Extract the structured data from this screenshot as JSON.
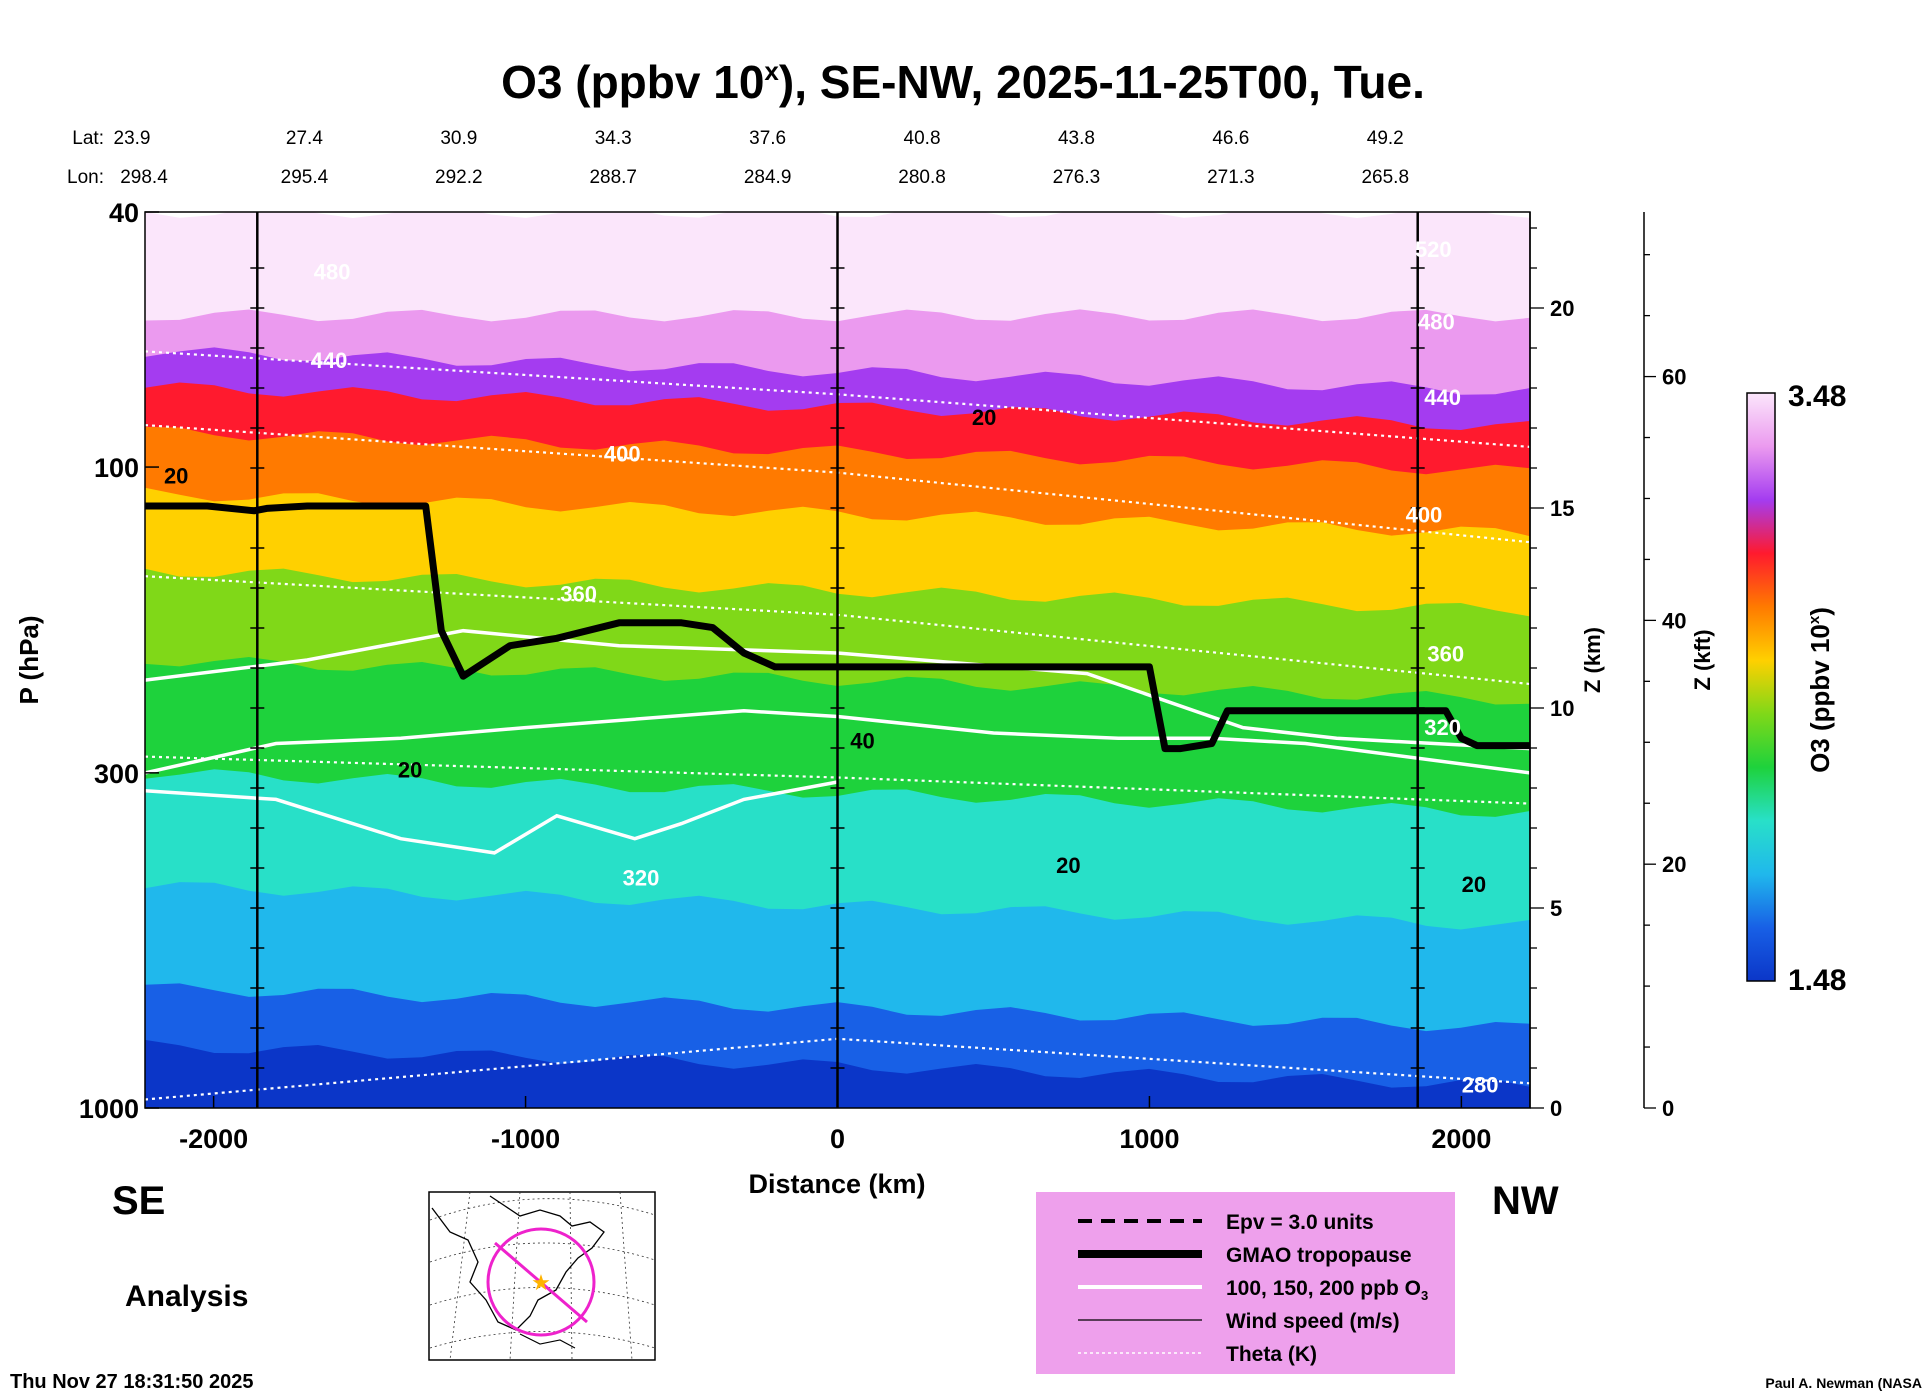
{
  "chart_data": {
    "type": "heatmap",
    "title": "O3 (ppbv 10",
    "title_sup": "x",
    "title_tail": "), SE-NW, 2025-11-25T00, Tue.",
    "xlabel": "Distance (km)",
    "ylabel": "P (hPa)",
    "y2label": "Z (km)",
    "y3label": "Z (kft)",
    "colorbar_label": "O3 (ppbv 10",
    "colorbar_label_sup": "x",
    "colorbar_label_tail": ")",
    "xlim": [
      -2220,
      2220
    ],
    "ylim_hpa": [
      1000,
      40
    ],
    "x_ticks": [
      -2000,
      -1000,
      0,
      1000,
      2000
    ],
    "y_ticks": [
      {
        "p": 40,
        "label": "40"
      },
      {
        "p": 100,
        "label": "100"
      },
      {
        "p": 300,
        "label": "300"
      },
      {
        "p": 1000,
        "label": "1000"
      }
    ],
    "z_km_ticks": [
      {
        "z": 0,
        "label": "0"
      },
      {
        "z": 5,
        "label": "5"
      },
      {
        "z": 10,
        "label": "10"
      },
      {
        "z": 15,
        "label": "15"
      },
      {
        "z": 20,
        "label": "20"
      }
    ],
    "z_kft_ticks": [
      {
        "z": 0,
        "label": "0"
      },
      {
        "z": 20,
        "label": "20"
      },
      {
        "z": 40,
        "label": "40"
      },
      {
        "z": 60,
        "label": "60"
      }
    ],
    "lat_label": "Lat:",
    "lon_label": "Lon:",
    "positions": [
      {
        "x": -2220,
        "lat": "23.9",
        "lon": "298.4"
      },
      {
        "x": -1725,
        "lat": "27.4",
        "lon": "295.4"
      },
      {
        "x": -1230,
        "lat": "30.9",
        "lon": "292.2"
      },
      {
        "x": -735,
        "lat": "34.3",
        "lon": "288.7"
      },
      {
        "x": -240,
        "lat": "37.6",
        "lon": "284.9"
      },
      {
        "x": 255,
        "lat": "40.8",
        "lon": "280.8"
      },
      {
        "x": 750,
        "lat": "43.8",
        "lon": "276.3"
      },
      {
        "x": 1245,
        "lat": "46.6",
        "lon": "271.3"
      },
      {
        "x": 1740,
        "lat": "49.2",
        "lon": "265.8"
      }
    ],
    "station_lines_x": [
      -1860,
      0,
      1860
    ],
    "colorbar": {
      "min": "1.48",
      "max": "3.48"
    },
    "ozone_bands_hpa": [
      {
        "p_top": 40,
        "p_bot": 58,
        "value": 3.48,
        "color": "#fbe6fb"
      },
      {
        "p_top": 58,
        "p_bot": 66,
        "value": 3.3,
        "color": "#eb9aef"
      },
      {
        "p_top": 66,
        "p_bot": 75,
        "value": 3.15,
        "color": "#a43cf0"
      },
      {
        "p_top": 75,
        "p_bot": 88,
        "value": 3.0,
        "color": "#ff1a2e"
      },
      {
        "p_top": 88,
        "p_bot": 110,
        "value": 2.85,
        "color": "#ff7a00"
      },
      {
        "p_top": 110,
        "p_bot": 145,
        "value": 2.7,
        "color": "#ffd000"
      },
      {
        "p_top": 145,
        "p_bot": 200,
        "value": 2.55,
        "color": "#80d818"
      },
      {
        "p_top": 200,
        "p_bot": 300,
        "value": 2.4,
        "color": "#1ed23c"
      },
      {
        "p_top": 300,
        "p_bot": 450,
        "value": 2.25,
        "color": "#28e0c8"
      },
      {
        "p_top": 450,
        "p_bot": 650,
        "value": 2.1,
        "color": "#20b8ec"
      },
      {
        "p_top": 650,
        "p_bot": 800,
        "value": 1.95,
        "color": "#1860e6"
      },
      {
        "p_top": 800,
        "p_bot": 1000,
        "value": 1.8,
        "color": "#0b36c8"
      }
    ],
    "tropopause": {
      "name": "GMAO tropopause",
      "x": [
        -2220,
        -2020,
        -1870,
        -1830,
        -1700,
        -1320,
        -1270,
        -1200,
        -1050,
        -900,
        -700,
        -500,
        -400,
        -300,
        -200,
        0,
        500,
        1000,
        1050,
        1100,
        1200,
        1250,
        1300,
        1600,
        1950,
        2000,
        2050,
        2220
      ],
      "p_hpa": [
        115,
        115,
        117,
        116,
        115,
        115,
        180,
        212,
        190,
        185,
        175,
        175,
        178,
        195,
        205,
        205,
        205,
        205,
        275,
        275,
        270,
        240,
        240,
        240,
        240,
        265,
        272,
        272
      ]
    },
    "theta_lines_K": [
      {
        "label": "440",
        "x": [
          -2220,
          0,
          2220
        ],
        "p_hpa": [
          66,
          77,
          93
        ]
      },
      {
        "label": "400",
        "x": [
          -2220,
          0,
          2220
        ],
        "p_hpa": [
          86,
          102,
          131
        ]
      },
      {
        "label": "360",
        "x": [
          -2220,
          0,
          2220
        ],
        "p_hpa": [
          148,
          170,
          218
        ]
      },
      {
        "label": "320",
        "x": [
          -2220,
          0,
          2220
        ],
        "p_hpa": [
          283,
          305,
          335
        ]
      },
      {
        "label": "280",
        "x": [
          -2220,
          0,
          2220
        ],
        "p_hpa": [
          970,
          780,
          915
        ]
      }
    ],
    "contour_labels": {
      "theta": [
        {
          "label": "480",
          "x": -1620,
          "p": 51
        },
        {
          "label": "440",
          "x": -1630,
          "p": 70
        },
        {
          "label": "400",
          "x": -690,
          "p": 98
        },
        {
          "label": "360",
          "x": -830,
          "p": 162
        },
        {
          "label": "320",
          "x": -630,
          "p": 450
        },
        {
          "label": "520",
          "x": 1910,
          "p": 47
        },
        {
          "label": "480",
          "x": 1920,
          "p": 61
        },
        {
          "label": "440",
          "x": 1940,
          "p": 80
        },
        {
          "label": "400",
          "x": 1880,
          "p": 122
        },
        {
          "label": "360",
          "x": 1950,
          "p": 201
        },
        {
          "label": "320",
          "x": 1940,
          "p": 262
        },
        {
          "label": "280",
          "x": 2060,
          "p": 945
        }
      ],
      "wind": [
        {
          "label": "20",
          "x": 470,
          "p": 86
        },
        {
          "label": "20",
          "x": -2120,
          "p": 106
        },
        {
          "label": "20",
          "x": -1370,
          "p": 305
        },
        {
          "label": "40",
          "x": 80,
          "p": 275
        },
        {
          "label": "20",
          "x": 740,
          "p": 430
        },
        {
          "label": "20",
          "x": 2040,
          "p": 460
        }
      ]
    },
    "ozone_contours_ppb": [
      {
        "level": 200,
        "x": [
          -2220,
          -1700,
          -1200,
          -700,
          0,
          800,
          1300,
          1600,
          2220
        ],
        "p_hpa": [
          215,
          200,
          180,
          190,
          195,
          210,
          255,
          265,
          275
        ]
      },
      {
        "level": 150,
        "x": [
          -2220,
          -1800,
          -1400,
          -1000,
          -300,
          0,
          500,
          900,
          1200,
          1500,
          2220
        ],
        "p_hpa": [
          300,
          270,
          265,
          255,
          240,
          245,
          260,
          265,
          265,
          270,
          300
        ]
      },
      {
        "level": 100,
        "x": [
          -2220,
          -1800,
          -1400,
          -1100,
          -900,
          -650,
          -500,
          -300,
          0
        ],
        "p_hpa": [
          320,
          330,
          380,
          400,
          350,
          380,
          360,
          330,
          310
        ]
      }
    ],
    "map_inset": {
      "center_lat": 37.6,
      "center_lon": 284.9,
      "center_marker": "star",
      "track": "SE-NW"
    }
  },
  "labels": {
    "se": "SE",
    "nw": "NW",
    "analysis": "Analysis",
    "timestamp": "Thu Nov 27 18:31:50 2025",
    "credit": "Paul A. Newman (NASA"
  },
  "legend": {
    "items": [
      {
        "label": "Epv = 3.0 units",
        "style": "dashed-black"
      },
      {
        "label": "GMAO tropopause",
        "style": "thick-black"
      },
      {
        "label": "100, 150, 200 ppb O",
        "sub": "3",
        "style": "thick-white"
      },
      {
        "label": "Wind speed (m/s)",
        "style": "thin-black"
      },
      {
        "label": "Theta (K)",
        "style": "dotted-white"
      }
    ]
  },
  "colors": {
    "legend_bg": "#eea0ec",
    "inset_circle": "#ee22cc",
    "inset_star": "#ffb300"
  }
}
